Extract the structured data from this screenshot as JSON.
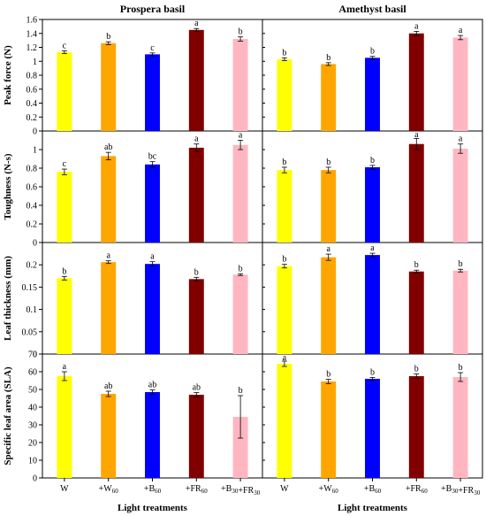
{
  "colors": {
    "W": "#ffff00",
    "+W60": "#ffa500",
    "+B60": "#0000ff",
    "+FR60": "#800000",
    "+B30+FR30": "#ffb6c1"
  },
  "chart_data": {
    "type": "bar",
    "columns": [
      "Prospera basil",
      "Amethyst basil"
    ],
    "categories": [
      {
        "base": "W",
        "sub": ""
      },
      {
        "base": "+W",
        "sub": "60"
      },
      {
        "base": "+B",
        "sub": "60"
      },
      {
        "base": "+FR",
        "sub": "60"
      },
      {
        "base": "+B",
        "sub": "30",
        "base2": "+FR",
        "sub2": "30"
      }
    ],
    "category_keys": [
      "W",
      "+W60",
      "+B60",
      "+FR60",
      "+B30+FR30"
    ],
    "xlabel": "Light treatments",
    "rows": [
      {
        "ylabel": "Peak force (N)",
        "ylim": [
          0,
          1.6
        ],
        "ticks": [
          "0",
          "0.2",
          "0.4",
          "0.6",
          "0.8",
          "1",
          "1.2",
          "1.4",
          "1.6"
        ],
        "panels": [
          {
            "values": [
              1.13,
              1.26,
              1.1,
              1.45,
              1.32
            ],
            "errors": [
              0.02,
              0.02,
              0.02,
              0.02,
              0.03
            ],
            "letters": [
              "c",
              "b",
              "c",
              "a",
              "b"
            ]
          },
          {
            "values": [
              1.03,
              0.96,
              1.05,
              1.4,
              1.34
            ],
            "errors": [
              0.02,
              0.02,
              0.02,
              0.03,
              0.03
            ],
            "letters": [
              "b",
              "b",
              "b",
              "a",
              "a"
            ]
          }
        ]
      },
      {
        "ylabel": "Toughness (N-s)",
        "ylim": [
          0,
          1.2
        ],
        "ticks": [
          "0",
          "0.2",
          "0.4",
          "0.6",
          "0.8",
          "1"
        ],
        "panels": [
          {
            "values": [
              0.76,
              0.93,
              0.84,
              1.02,
              1.05
            ],
            "errors": [
              0.03,
              0.04,
              0.03,
              0.04,
              0.05
            ],
            "letters": [
              "c",
              "ab",
              "bc",
              "a",
              "a"
            ]
          },
          {
            "values": [
              0.78,
              0.78,
              0.81,
              1.06,
              1.01
            ],
            "errors": [
              0.03,
              0.03,
              0.02,
              0.06,
              0.05
            ],
            "letters": [
              "b",
              "b",
              "b",
              "a",
              "a"
            ]
          }
        ]
      },
      {
        "ylabel": "Leaf thickness (mm)",
        "ylim": [
          0,
          0.25
        ],
        "ticks": [
          "0",
          "0.05",
          "0.1",
          "0.15",
          "0.2"
        ],
        "panels": [
          {
            "values": [
              0.17,
              0.206,
              0.202,
              0.168,
              0.178
            ],
            "errors": [
              0.004,
              0.003,
              0.005,
              0.004,
              0.002
            ],
            "letters": [
              "b",
              "a",
              "a",
              "b",
              "b"
            ]
          },
          {
            "values": [
              0.197,
              0.217,
              0.222,
              0.185,
              0.187
            ],
            "errors": [
              0.004,
              0.007,
              0.004,
              0.003,
              0.003
            ],
            "letters": [
              "b",
              "a",
              "a",
              "b",
              "b"
            ]
          }
        ]
      },
      {
        "ylabel": "Specific leaf area (SLA)",
        "ylim": [
          0,
          70
        ],
        "ticks": [
          "0",
          "10",
          "20",
          "30",
          "40",
          "50",
          "60",
          "70"
        ],
        "panels": [
          {
            "values": [
              57.5,
              47.5,
              48.5,
              47.0,
              34.5
            ],
            "errors": [
              2.5,
              1.5,
              1.2,
              1.2,
              12.0
            ],
            "letters": [
              "a",
              "ab",
              "ab",
              "ab",
              "b"
            ]
          },
          {
            "values": [
              64.5,
              54.5,
              56.0,
              57.5,
              57.0
            ],
            "errors": [
              1.5,
              1.2,
              0.8,
              1.2,
              2.5
            ],
            "letters": [
              "a",
              "b",
              "b",
              "b",
              "b"
            ]
          }
        ]
      }
    ]
  }
}
